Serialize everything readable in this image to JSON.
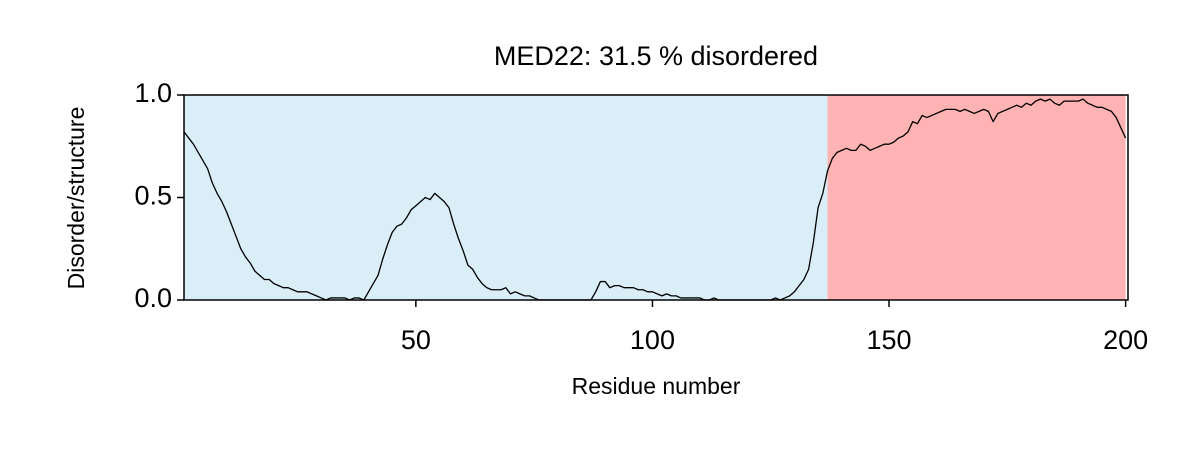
{
  "chart_data": {
    "type": "line",
    "title": "MED22: 31.5 % disordered",
    "xlabel": "Residue number",
    "ylabel": "Disorder/structure",
    "x": [
      1,
      2,
      3,
      4,
      5,
      6,
      7,
      8,
      9,
      10,
      11,
      12,
      13,
      14,
      15,
      16,
      17,
      18,
      19,
      20,
      21,
      22,
      23,
      24,
      25,
      26,
      27,
      28,
      29,
      30,
      31,
      32,
      33,
      34,
      35,
      36,
      37,
      38,
      39,
      40,
      41,
      42,
      43,
      44,
      45,
      46,
      47,
      48,
      49,
      50,
      51,
      52,
      53,
      54,
      55,
      56,
      57,
      58,
      59,
      60,
      61,
      62,
      63,
      64,
      65,
      66,
      67,
      68,
      69,
      70,
      71,
      72,
      73,
      74,
      75,
      76,
      77,
      78,
      79,
      80,
      81,
      82,
      83,
      84,
      85,
      86,
      87,
      88,
      89,
      90,
      91,
      92,
      93,
      94,
      95,
      96,
      97,
      98,
      99,
      100,
      101,
      102,
      103,
      104,
      105,
      106,
      107,
      108,
      109,
      110,
      111,
      112,
      113,
      114,
      115,
      116,
      117,
      118,
      119,
      120,
      121,
      122,
      123,
      124,
      125,
      126,
      127,
      128,
      129,
      130,
      131,
      132,
      133,
      134,
      135,
      136,
      137,
      138,
      139,
      140,
      141,
      142,
      143,
      144,
      145,
      146,
      147,
      148,
      149,
      150,
      151,
      152,
      153,
      154,
      155,
      156,
      157,
      158,
      159,
      160,
      161,
      162,
      163,
      164,
      165,
      166,
      167,
      168,
      169,
      170,
      171,
      172,
      173,
      174,
      175,
      176,
      177,
      178,
      179,
      180,
      181,
      182,
      183,
      184,
      185,
      186,
      187,
      188,
      189,
      190,
      191,
      192,
      193,
      194,
      195,
      196,
      197,
      198,
      199,
      200
    ],
    "series": [
      {
        "color": "#000000",
        "values": [
          0.82,
          0.79,
          0.76,
          0.72,
          0.68,
          0.64,
          0.57,
          0.52,
          0.48,
          0.43,
          0.37,
          0.31,
          0.25,
          0.21,
          0.18,
          0.14,
          0.12,
          0.1,
          0.1,
          0.08,
          0.07,
          0.06,
          0.06,
          0.05,
          0.04,
          0.04,
          0.04,
          0.03,
          0.02,
          0.01,
          0,
          0.01,
          0.01,
          0.01,
          0.01,
          0,
          0.01,
          0.01,
          0,
          0.04,
          0.08,
          0.12,
          0.2,
          0.27,
          0.33,
          0.36,
          0.37,
          0.4,
          0.44,
          0.46,
          0.48,
          0.5,
          0.49,
          0.52,
          0.5,
          0.48,
          0.45,
          0.37,
          0.3,
          0.24,
          0.17,
          0.15,
          0.11,
          0.08,
          0.06,
          0.05,
          0.05,
          0.05,
          0.06,
          0.03,
          0.04,
          0.03,
          0.02,
          0.02,
          0.01,
          0,
          0,
          0,
          0,
          0,
          0,
          0,
          0,
          0,
          0,
          0,
          0,
          0.04,
          0.09,
          0.09,
          0.06,
          0.07,
          0.07,
          0.06,
          0.06,
          0.06,
          0.05,
          0.05,
          0.04,
          0.04,
          0.03,
          0.02,
          0.03,
          0.02,
          0.02,
          0.01,
          0.01,
          0.01,
          0.01,
          0.01,
          0,
          0,
          0.01,
          0,
          0,
          0,
          0,
          0,
          0,
          0,
          0,
          0,
          0,
          0,
          0,
          0.01,
          0,
          0.01,
          0.02,
          0.04,
          0.07,
          0.1,
          0.15,
          0.28,
          0.45,
          0.52,
          0.63,
          0.69,
          0.72,
          0.73,
          0.74,
          0.73,
          0.73,
          0.76,
          0.75,
          0.73,
          0.74,
          0.75,
          0.76,
          0.76,
          0.77,
          0.79,
          0.8,
          0.82,
          0.87,
          0.86,
          0.9,
          0.89,
          0.9,
          0.91,
          0.92,
          0.93,
          0.93,
          0.93,
          0.92,
          0.93,
          0.92,
          0.91,
          0.92,
          0.93,
          0.92,
          0.87,
          0.91,
          0.92,
          0.93,
          0.94,
          0.95,
          0.94,
          0.96,
          0.95,
          0.97,
          0.98,
          0.97,
          0.98,
          0.96,
          0.95,
          0.97,
          0.97,
          0.97,
          0.97,
          0.98,
          0.96,
          0.95,
          0.94,
          0.94,
          0.93,
          0.92,
          0.89,
          0.84,
          0.79
        ]
      }
    ],
    "regions": [
      {
        "start": 1,
        "end": 137,
        "color": "#d9eef7"
      },
      {
        "start": 137,
        "end": 200,
        "color": "#ffb3b3"
      }
    ],
    "xlim": [
      1,
      200.5
    ],
    "xticks": [
      50,
      100,
      150,
      200
    ],
    "ylim": [
      0,
      1
    ],
    "yticks": [
      {
        "value": 0,
        "label": "0.0"
      },
      {
        "value": 0.5,
        "label": "0.5"
      },
      {
        "value": 1,
        "label": "1.0"
      }
    ]
  }
}
